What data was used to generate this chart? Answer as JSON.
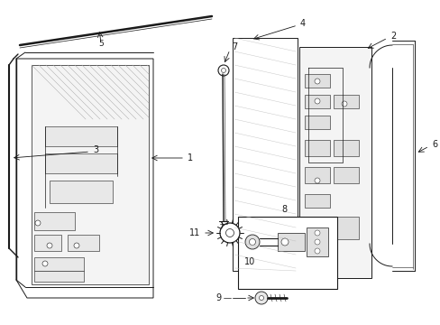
{
  "background_color": "#ffffff",
  "line_color": "#1a1a1a",
  "fig_width": 4.89,
  "fig_height": 3.6,
  "dpi": 100,
  "label_fs": 7.0
}
